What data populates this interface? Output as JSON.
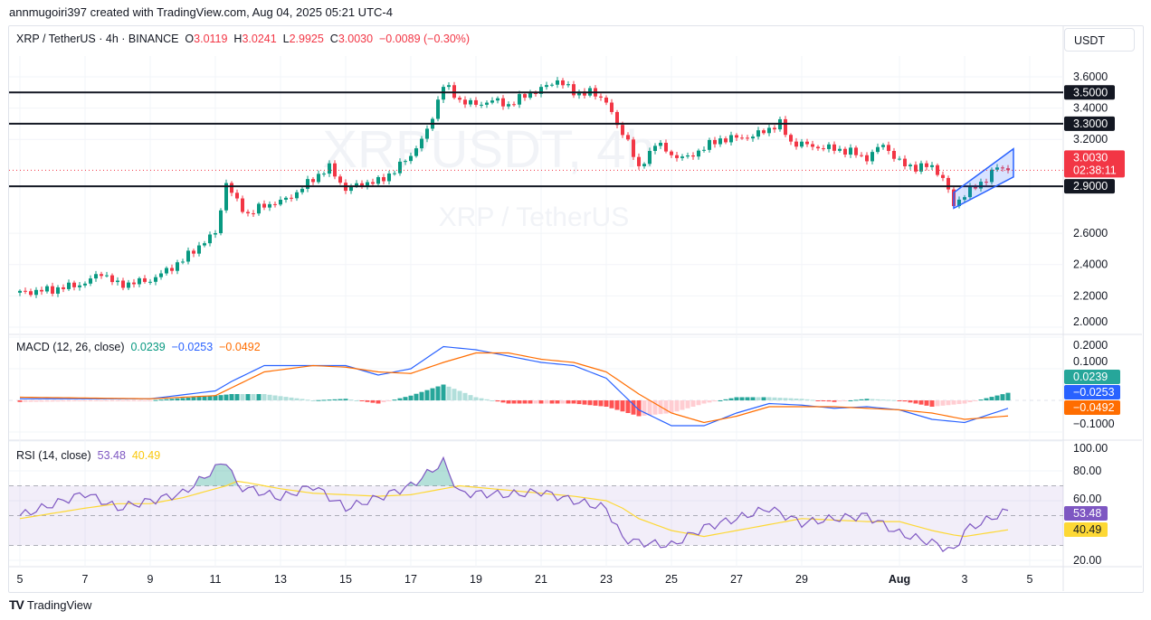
{
  "credit": "annmugoiri397 created with TradingView.com, Aug 04, 2025 05:21 UTC-4",
  "legend": {
    "symbol": "XRP / TetherUS · 4h · BINANCE",
    "o_label": "O",
    "open": "3.0119",
    "h_label": "H",
    "high": "3.0241",
    "l_label": "L",
    "low": "2.9925",
    "c_label": "C",
    "close": "3.0030",
    "change": "−0.0089 (−0.30%)"
  },
  "currency": "USDT",
  "watermark": {
    "line1": "XRPUSDT, 4h",
    "line2": "XRP / TetherUS"
  },
  "logo": "TradingView",
  "colors": {
    "up": "#089981",
    "down": "#f23645",
    "macd": "#2962ff",
    "signal": "#ff6d00",
    "rsi": "#7e57c2",
    "rsi_ma": "#fdd835",
    "channel": "#2962ff"
  },
  "chart_data": [
    {
      "type": "candlestick",
      "title": "XRP / TetherUS · 4h · BINANCE",
      "ylim": [
        2.0,
        3.7
      ],
      "yticks": [
        "3.6000",
        "3.4000",
        "3.2000",
        "2.6000",
        "2.4000",
        "2.2000",
        "2.0000"
      ],
      "xticks": [
        {
          "date": "2025-07-05",
          "label": "5"
        },
        {
          "date": "2025-07-07",
          "label": "7"
        },
        {
          "date": "2025-07-09",
          "label": "9"
        },
        {
          "date": "2025-07-11",
          "label": "11"
        },
        {
          "date": "2025-07-13",
          "label": "13"
        },
        {
          "date": "2025-07-15",
          "label": "15"
        },
        {
          "date": "2025-07-17",
          "label": "17"
        },
        {
          "date": "2025-07-19",
          "label": "19"
        },
        {
          "date": "2025-07-21",
          "label": "21"
        },
        {
          "date": "2025-07-23",
          "label": "23"
        },
        {
          "date": "2025-07-25",
          "label": "25"
        },
        {
          "date": "2025-07-27",
          "label": "27"
        },
        {
          "date": "2025-07-29",
          "label": "29"
        },
        {
          "date": "2025-08-01",
          "label": "Aug"
        },
        {
          "date": "2025-08-03",
          "label": "3"
        },
        {
          "date": "2025-08-05",
          "label": "5"
        }
      ],
      "horizontal_levels": [
        {
          "value": 3.5,
          "label": "3.5000"
        },
        {
          "value": 3.3,
          "label": "3.3000"
        },
        {
          "value": 2.9,
          "label": "2.9000"
        }
      ],
      "last_price": {
        "value": 3.003,
        "label": "3.0030",
        "countdown": "02:38:11"
      },
      "channel": {
        "from": "2025-08-02 16:00",
        "to": "2025-08-04 12:00",
        "upper": [
          2.86,
          3.14
        ],
        "lower": [
          2.76,
          2.96
        ]
      },
      "close_approx": [
        [
          "2025-07-05 00:00",
          2.22
        ],
        [
          "2025-07-06 00:00",
          2.24
        ],
        [
          "2025-07-07 00:00",
          2.28
        ],
        [
          "2025-07-07 12:00",
          2.35
        ],
        [
          "2025-07-08 00:00",
          2.27
        ],
        [
          "2025-07-09 00:00",
          2.3
        ],
        [
          "2025-07-09 12:00",
          2.36
        ],
        [
          "2025-07-10 00:00",
          2.43
        ],
        [
          "2025-07-10 12:00",
          2.52
        ],
        [
          "2025-07-11 00:00",
          2.6
        ],
        [
          "2025-07-11 08:00",
          2.92
        ],
        [
          "2025-07-11 16:00",
          2.8
        ],
        [
          "2025-07-12 00:00",
          2.72
        ],
        [
          "2025-07-12 12:00",
          2.78
        ],
        [
          "2025-07-13 00:00",
          2.8
        ],
        [
          "2025-07-13 12:00",
          2.86
        ],
        [
          "2025-07-14 00:00",
          2.95
        ],
        [
          "2025-07-14 12:00",
          3.02
        ],
        [
          "2025-07-15 00:00",
          2.88
        ],
        [
          "2025-07-15 12:00",
          2.92
        ],
        [
          "2025-07-16 00:00",
          2.93
        ],
        [
          "2025-07-16 12:00",
          3.0
        ],
        [
          "2025-07-17 00:00",
          3.1
        ],
        [
          "2025-07-17 12:00",
          3.25
        ],
        [
          "2025-07-18 00:00",
          3.55
        ],
        [
          "2025-07-18 12:00",
          3.45
        ],
        [
          "2025-07-19 00:00",
          3.42
        ],
        [
          "2025-07-19 12:00",
          3.45
        ],
        [
          "2025-07-20 00:00",
          3.42
        ],
        [
          "2025-07-20 12:00",
          3.48
        ],
        [
          "2025-07-21 00:00",
          3.52
        ],
        [
          "2025-07-21 12:00",
          3.58
        ],
        [
          "2025-07-22 00:00",
          3.5
        ],
        [
          "2025-07-22 12:00",
          3.5
        ],
        [
          "2025-07-23 00:00",
          3.45
        ],
        [
          "2025-07-23 08:00",
          3.28
        ],
        [
          "2025-07-23 16:00",
          3.2
        ],
        [
          "2025-07-24 00:00",
          3.0
        ],
        [
          "2025-07-24 12:00",
          3.18
        ],
        [
          "2025-07-25 00:00",
          3.1
        ],
        [
          "2025-07-25 12:00",
          3.08
        ],
        [
          "2025-07-26 00:00",
          3.15
        ],
        [
          "2025-07-26 12:00",
          3.2
        ],
        [
          "2025-07-27 00:00",
          3.21
        ],
        [
          "2025-07-27 12:00",
          3.22
        ],
        [
          "2025-07-28 00:00",
          3.27
        ],
        [
          "2025-07-28 08:00",
          3.3
        ],
        [
          "2025-07-28 16:00",
          3.18
        ],
        [
          "2025-07-29 00:00",
          3.17
        ],
        [
          "2025-07-29 12:00",
          3.15
        ],
        [
          "2025-07-30 00:00",
          3.14
        ],
        [
          "2025-07-30 12:00",
          3.12
        ],
        [
          "2025-07-31 00:00",
          3.08
        ],
        [
          "2025-07-31 12:00",
          3.17
        ],
        [
          "2025-08-01 00:00",
          3.05
        ],
        [
          "2025-08-01 12:00",
          3.02
        ],
        [
          "2025-08-02 00:00",
          3.03
        ],
        [
          "2025-08-02 08:00",
          2.95
        ],
        [
          "2025-08-02 16:00",
          2.78
        ],
        [
          "2025-08-03 00:00",
          2.85
        ],
        [
          "2025-08-03 12:00",
          2.92
        ],
        [
          "2025-08-04 00:00",
          3.02
        ],
        [
          "2025-08-04 08:00",
          3.003
        ]
      ]
    },
    {
      "type": "line",
      "title": "MACD (12, 26, close)",
      "values_label": {
        "histogram": "0.0239",
        "macd": "−0.0253",
        "signal": "−0.0492"
      },
      "ylim": [
        -0.1,
        0.2
      ],
      "yticks": [
        "0.2000",
        "0.1000",
        "−0.1000"
      ],
      "series_approx": [
        [
          "2025-07-05 00:00",
          0.005,
          0.01
        ],
        [
          "2025-07-09 00:00",
          0.005,
          0.005
        ],
        [
          "2025-07-11 00:00",
          0.03,
          0.015
        ],
        [
          "2025-07-11 12:00",
          0.06,
          0.04
        ],
        [
          "2025-07-12 12:00",
          0.11,
          0.09
        ],
        [
          "2025-07-14 00:00",
          0.11,
          0.11
        ],
        [
          "2025-07-15 00:00",
          0.11,
          0.105
        ],
        [
          "2025-07-16 00:00",
          0.08,
          0.09
        ],
        [
          "2025-07-17 00:00",
          0.1,
          0.085
        ],
        [
          "2025-07-18 00:00",
          0.17,
          0.12
        ],
        [
          "2025-07-19 00:00",
          0.16,
          0.15
        ],
        [
          "2025-07-20 00:00",
          0.14,
          0.15
        ],
        [
          "2025-07-21 00:00",
          0.12,
          0.13
        ],
        [
          "2025-07-22 00:00",
          0.11,
          0.12
        ],
        [
          "2025-07-23 00:00",
          0.07,
          0.09
        ],
        [
          "2025-07-24 00:00",
          -0.03,
          0.02
        ],
        [
          "2025-07-25 00:00",
          -0.08,
          -0.04
        ],
        [
          "2025-07-26 00:00",
          -0.08,
          -0.07
        ],
        [
          "2025-07-27 00:00",
          -0.04,
          -0.05
        ],
        [
          "2025-07-28 00:00",
          -0.01,
          -0.02
        ],
        [
          "2025-07-29 00:00",
          -0.015,
          -0.02
        ],
        [
          "2025-07-30 00:00",
          -0.025,
          -0.02
        ],
        [
          "2025-07-31 00:00",
          -0.02,
          -0.025
        ],
        [
          "2025-08-01 00:00",
          -0.03,
          -0.03
        ],
        [
          "2025-08-02 00:00",
          -0.06,
          -0.04
        ],
        [
          "2025-08-03 00:00",
          -0.07,
          -0.06
        ],
        [
          "2025-08-04 08:00",
          -0.0253,
          -0.0492
        ]
      ]
    },
    {
      "type": "line",
      "title": "RSI (14, close)",
      "values_label": {
        "rsi": "53.48",
        "ma": "40.49"
      },
      "ylim": [
        20,
        100
      ],
      "yticks": [
        "100.00",
        "80.00",
        "60.00",
        "20.00"
      ],
      "bands": [
        70,
        50,
        30
      ],
      "series_approx": [
        [
          "2025-07-05 00:00",
          50,
          48
        ],
        [
          "2025-07-07 00:00",
          65,
          55
        ],
        [
          "2025-07-08 00:00",
          55,
          58
        ],
        [
          "2025-07-09 00:00",
          60,
          58
        ],
        [
          "2025-07-10 00:00",
          65,
          62
        ],
        [
          "2025-07-11 08:00",
          87,
          70
        ],
        [
          "2025-07-11 16:00",
          70,
          73
        ],
        [
          "2025-07-12 00:00",
          68,
          72
        ],
        [
          "2025-07-13 00:00",
          62,
          68
        ],
        [
          "2025-07-14 00:00",
          70,
          65
        ],
        [
          "2025-07-15 00:00",
          55,
          64
        ],
        [
          "2025-07-16 00:00",
          62,
          63
        ],
        [
          "2025-07-17 00:00",
          70,
          64
        ],
        [
          "2025-07-18 00:00",
          86,
          68
        ],
        [
          "2025-07-18 12:00",
          65,
          70
        ],
        [
          "2025-07-19 00:00",
          65,
          69
        ],
        [
          "2025-07-20 00:00",
          64,
          67
        ],
        [
          "2025-07-21 00:00",
          66,
          65
        ],
        [
          "2025-07-22 00:00",
          60,
          63
        ],
        [
          "2025-07-23 00:00",
          55,
          60
        ],
        [
          "2025-07-23 12:00",
          35,
          55
        ],
        [
          "2025-07-24 00:00",
          32,
          48
        ],
        [
          "2025-07-25 00:00",
          30,
          40
        ],
        [
          "2025-07-26 00:00",
          42,
          36
        ],
        [
          "2025-07-27 00:00",
          48,
          40
        ],
        [
          "2025-07-28 00:00",
          55,
          44
        ],
        [
          "2025-07-29 00:00",
          45,
          48
        ],
        [
          "2025-07-30 00:00",
          48,
          47
        ],
        [
          "2025-07-31 00:00",
          50,
          46
        ],
        [
          "2025-08-01 00:00",
          38,
          46
        ],
        [
          "2025-08-02 00:00",
          32,
          40
        ],
        [
          "2025-08-02 16:00",
          26,
          37
        ],
        [
          "2025-08-03 00:00",
          40,
          36
        ],
        [
          "2025-08-04 08:00",
          53.48,
          40.49
        ]
      ]
    }
  ]
}
